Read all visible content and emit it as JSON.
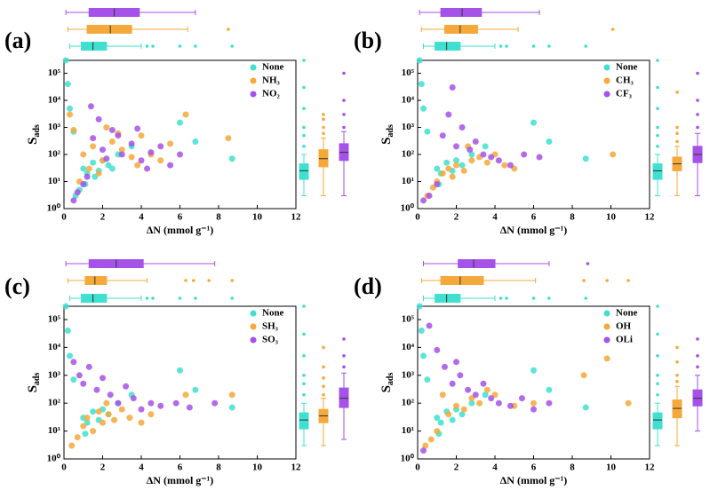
{
  "chart_data": [
    {
      "type": "scatter",
      "panel_label": "(a)",
      "xlabel": "ΔN (mmol g⁻¹)",
      "ylabel": {
        "main": "S",
        "sub": "ads"
      },
      "xlim": [
        0,
        12
      ],
      "xticks": [
        0,
        2,
        4,
        6,
        8,
        10,
        12
      ],
      "log_y": true,
      "ylim": [
        1,
        300000
      ],
      "yticks": [
        {
          "value": 1,
          "label": "10⁰"
        },
        {
          "value": 10,
          "label": "10¹"
        },
        {
          "value": 100,
          "label": "10²"
        },
        {
          "value": 1000,
          "label": "10³"
        },
        {
          "value": 10000,
          "label": "10⁴"
        },
        {
          "value": 100000,
          "label": "10⁵"
        }
      ],
      "legend": "upper right",
      "series": [
        {
          "name": "None",
          "color": "#3fe0d0",
          "x": [
            0.1,
            0.2,
            0.3,
            0.5,
            1,
            1.2,
            1.5,
            1.8,
            2,
            2.3,
            1.1,
            0.8,
            2.8,
            3.5,
            6,
            6.8,
            8.7,
            1.6,
            2.5,
            0.6
          ],
          "values": [
            300000,
            40000,
            5000,
            700,
            30,
            20,
            50,
            25,
            60,
            40,
            8,
            5,
            100,
            200,
            1500,
            300,
            70,
            15,
            30,
            3
          ],
          "x_box": {
            "whislo": 0.3,
            "q1": 0.9,
            "med": 1.5,
            "q3": 2.2,
            "whishi": 4.0,
            "fliers": [
              4.3,
              4.6,
              6,
              6.8,
              8.7
            ]
          },
          "y_box": {
            "whislo": 3,
            "q1": 12,
            "med": 25,
            "q3": 45,
            "whishi": 100,
            "fliers": [
              200,
              500,
              1000,
              5000,
              30000,
              300000
            ]
          }
        },
        {
          "name": "NH₃",
          "color": "#f5a93a",
          "x": [
            0.3,
            0.5,
            1,
            1.5,
            2,
            2.5,
            3,
            3.5,
            4,
            4.5,
            5,
            5.5,
            6.3,
            8.5,
            2.2,
            1.3,
            0.8,
            3.8,
            2.8,
            1.8
          ],
          "values": [
            3000,
            800,
            100,
            200,
            60,
            300,
            150,
            80,
            500,
            100,
            60,
            250,
            3000,
            400,
            1000,
            30,
            10,
            40,
            600,
            20
          ],
          "x_box": {
            "whislo": 0.2,
            "q1": 1.2,
            "med": 2.4,
            "q3": 3.5,
            "whishi": 6.4,
            "fliers": [
              8.5
            ]
          },
          "y_box": {
            "whislo": 3,
            "q1": 35,
            "med": 70,
            "q3": 150,
            "whishi": 400,
            "fliers": [
              600,
              1000,
              2000,
              3000
            ]
          }
        },
        {
          "name": "NO₂",
          "color": "#a552e8",
          "x": [
            0.5,
            0.7,
            1,
            1.2,
            1.5,
            1.8,
            2,
            2.5,
            3,
            3.5,
            4,
            4.5,
            5,
            5.5,
            6,
            1.4,
            2.8,
            3.8,
            4.3,
            2.2
          ],
          "values": [
            2,
            4,
            8,
            15,
            400,
            2000,
            150,
            800,
            100,
            250,
            60,
            120,
            200,
            40,
            100,
            6000,
            500,
            900,
            30,
            70
          ],
          "x_box": {
            "whislo": 0.1,
            "q1": 1.3,
            "med": 2.6,
            "q3": 3.9,
            "whishi": 6.8,
            "fliers": []
          },
          "y_box": {
            "whislo": 3,
            "q1": 60,
            "med": 120,
            "q3": 250,
            "whishi": 700,
            "fliers": [
              1000,
              3000,
              10000,
              100000
            ]
          }
        }
      ]
    },
    {
      "type": "scatter",
      "panel_label": "(b)",
      "xlabel": "ΔN (mmol g⁻¹)",
      "ylabel": {
        "main": "S",
        "sub": "ads"
      },
      "xlim": [
        0,
        12
      ],
      "xticks": [
        0,
        2,
        4,
        6,
        8,
        10,
        12
      ],
      "log_y": true,
      "ylim": [
        1,
        300000
      ],
      "yticks": [
        {
          "value": 1,
          "label": "10⁰"
        },
        {
          "value": 10,
          "label": "10¹"
        },
        {
          "value": 100,
          "label": "10²"
        },
        {
          "value": 1000,
          "label": "10³"
        },
        {
          "value": 10000,
          "label": "10⁴"
        },
        {
          "value": 100000,
          "label": "10⁵"
        }
      ],
      "legend": "upper right",
      "series": [
        {
          "name": "None",
          "color": "#3fe0d0",
          "x": [
            0.1,
            0.2,
            0.3,
            0.5,
            1,
            1.2,
            1.5,
            1.8,
            2,
            2.3,
            1.1,
            2.8,
            3.5,
            6,
            6.8,
            8.7
          ],
          "values": [
            300000,
            40000,
            5000,
            700,
            30,
            20,
            50,
            25,
            60,
            40,
            8,
            100,
            200,
            1500,
            300,
            70
          ],
          "x_box": {
            "whislo": 0.3,
            "q1": 0.9,
            "med": 1.5,
            "q3": 2.2,
            "whishi": 4.0,
            "fliers": [
              4.3,
              4.6,
              6,
              6.8,
              8.7
            ]
          },
          "y_box": {
            "whislo": 3,
            "q1": 12,
            "med": 25,
            "q3": 45,
            "whishi": 100,
            "fliers": [
              200,
              500,
              1000,
              5000,
              30000,
              300000
            ]
          }
        },
        {
          "name": "CH₃",
          "color": "#f5a93a",
          "x": [
            0.5,
            0.8,
            1,
            1.3,
            1.6,
            2,
            2.4,
            2.8,
            3.2,
            3.6,
            4,
            4.5,
            5,
            10.1,
            1.8,
            2.6
          ],
          "values": [
            3,
            6,
            10,
            20,
            30,
            40,
            25,
            60,
            80,
            50,
            100,
            40,
            30,
            100,
            15,
            200
          ],
          "x_box": {
            "whislo": 0.2,
            "q1": 1.4,
            "med": 2.2,
            "q3": 3.1,
            "whishi": 5.2,
            "fliers": [
              10.1
            ]
          },
          "y_box": {
            "whislo": 3,
            "q1": 25,
            "med": 45,
            "q3": 80,
            "whishi": 200,
            "fliers": [
              300,
              600,
              1000,
              20000
            ]
          }
        },
        {
          "name": "CF₃",
          "color": "#a552e8",
          "x": [
            0.3,
            0.6,
            1,
            1.3,
            1.6,
            2,
            2.3,
            2.7,
            3,
            3.4,
            3.8,
            4.2,
            4.8,
            5.5,
            6.3,
            1.8
          ],
          "values": [
            2,
            3,
            8,
            500,
            3000,
            200,
            1000,
            150,
            300,
            100,
            80,
            60,
            40,
            100,
            80,
            30000
          ],
          "x_box": {
            "whislo": 0.1,
            "q1": 1.2,
            "med": 2.3,
            "q3": 3.3,
            "whishi": 6.3,
            "fliers": []
          },
          "y_box": {
            "whislo": 3,
            "q1": 50,
            "med": 100,
            "q3": 200,
            "whishi": 600,
            "fliers": [
              1000,
              3000,
              10000,
              100000
            ]
          }
        }
      ]
    },
    {
      "type": "scatter",
      "panel_label": "(c)",
      "xlabel": "ΔN (mmol g⁻¹)",
      "ylabel": {
        "main": "S",
        "sub": "ads"
      },
      "xlim": [
        0,
        12
      ],
      "xticks": [
        0,
        2,
        4,
        6,
        8,
        10,
        12
      ],
      "log_y": true,
      "ylim": [
        1,
        300000
      ],
      "yticks": [
        {
          "value": 1,
          "label": "10⁰"
        },
        {
          "value": 10,
          "label": "10¹"
        },
        {
          "value": 100,
          "label": "10²"
        },
        {
          "value": 1000,
          "label": "10³"
        },
        {
          "value": 10000,
          "label": "10⁴"
        },
        {
          "value": 100000,
          "label": "10⁵"
        }
      ],
      "legend": "upper right",
      "series": [
        {
          "name": "None",
          "color": "#3fe0d0",
          "x": [
            0.1,
            0.2,
            0.3,
            0.5,
            1,
            1.2,
            1.5,
            1.8,
            2,
            2.3,
            1.1,
            2.8,
            3.5,
            6,
            6.8,
            8.7
          ],
          "values": [
            300000,
            40000,
            5000,
            700,
            30,
            20,
            50,
            25,
            60,
            40,
            8,
            100,
            200,
            1500,
            300,
            70
          ],
          "x_box": {
            "whislo": 0.3,
            "q1": 0.9,
            "med": 1.5,
            "q3": 2.2,
            "whishi": 4.0,
            "fliers": [
              4.3,
              4.6,
              6,
              6.8,
              8.7
            ]
          },
          "y_box": {
            "whislo": 3,
            "q1": 12,
            "med": 25,
            "q3": 45,
            "whishi": 100,
            "fliers": [
              200,
              500,
              1000,
              5000,
              30000,
              300000
            ]
          }
        },
        {
          "name": "SH₃",
          "color": "#f5a93a",
          "x": [
            0.4,
            0.7,
            1,
            1.2,
            1.5,
            1.8,
            2,
            2.3,
            2.6,
            3,
            3.4,
            4,
            4.5,
            6.3,
            8.7,
            2.2
          ],
          "values": [
            3,
            6,
            15,
            30,
            10,
            50,
            20,
            40,
            25,
            60,
            30,
            20,
            40,
            200,
            200,
            100
          ],
          "x_box": {
            "whislo": 0.2,
            "q1": 1.1,
            "med": 1.6,
            "q3": 2.2,
            "whishi": 4.3,
            "fliers": [
              6.3,
              6.7,
              7.5,
              8.7
            ]
          },
          "y_box": {
            "whislo": 3,
            "q1": 20,
            "med": 35,
            "q3": 60,
            "whishi": 150,
            "fliers": [
              200,
              400,
              800,
              2000,
              10000
            ]
          }
        },
        {
          "name": "SO₃",
          "color": "#a552e8",
          "x": [
            0.5,
            0.8,
            1,
            1.3,
            1.7,
            2,
            2.4,
            2.8,
            3.2,
            3.6,
            4,
            4.5,
            5,
            5.8,
            6.5,
            7.8
          ],
          "values": [
            3000,
            1000,
            500,
            2000,
            300,
            800,
            200,
            100,
            400,
            150,
            60,
            100,
            80,
            100,
            70,
            100
          ],
          "x_box": {
            "whislo": 0.1,
            "q1": 1.3,
            "med": 2.7,
            "q3": 4.1,
            "whishi": 7.8,
            "fliers": []
          },
          "y_box": {
            "whislo": 5,
            "q1": 70,
            "med": 150,
            "q3": 350,
            "whishi": 1200,
            "fliers": [
              2000,
              5000,
              20000
            ]
          }
        }
      ]
    },
    {
      "type": "scatter",
      "panel_label": "(d)",
      "xlabel": "ΔN (mmol g⁻¹)",
      "ylabel": {
        "main": "S",
        "sub": "ads"
      },
      "xlim": [
        0,
        12
      ],
      "xticks": [
        0,
        2,
        4,
        6,
        8,
        10,
        12
      ],
      "log_y": true,
      "ylim": [
        1,
        300000
      ],
      "yticks": [
        {
          "value": 1,
          "label": "10⁰"
        },
        {
          "value": 10,
          "label": "10¹"
        },
        {
          "value": 100,
          "label": "10²"
        },
        {
          "value": 1000,
          "label": "10³"
        },
        {
          "value": 10000,
          "label": "10⁴"
        },
        {
          "value": 100000,
          "label": "10⁵"
        }
      ],
      "legend": "upper right",
      "series": [
        {
          "name": "None",
          "color": "#3fe0d0",
          "x": [
            0.1,
            0.2,
            0.3,
            0.5,
            1,
            1.2,
            1.5,
            1.8,
            2,
            2.3,
            1.1,
            2.8,
            3.5,
            6,
            6.8,
            8.7
          ],
          "values": [
            300000,
            40000,
            5000,
            700,
            30,
            20,
            50,
            25,
            60,
            40,
            8,
            100,
            200,
            1500,
            300,
            70
          ],
          "x_box": {
            "whislo": 0.3,
            "q1": 0.9,
            "med": 1.5,
            "q3": 2.2,
            "whishi": 4.0,
            "fliers": [
              4.3,
              4.6,
              6,
              6.8,
              8.7
            ]
          },
          "y_box": {
            "whislo": 3,
            "q1": 12,
            "med": 25,
            "q3": 45,
            "whishi": 100,
            "fliers": [
              200,
              500,
              1000,
              5000,
              30000,
              300000
            ]
          }
        },
        {
          "name": "OH",
          "color": "#f5a93a",
          "x": [
            0.4,
            0.7,
            1,
            1.3,
            1.6,
            2,
            2.4,
            2.8,
            3.2,
            3.6,
            4,
            5,
            6,
            9.8,
            10.9,
            8.6
          ],
          "values": [
            3,
            5,
            10,
            200,
            40,
            80,
            60,
            150,
            100,
            300,
            200,
            80,
            100,
            4000,
            100,
            1000
          ],
          "x_box": {
            "whislo": 0.2,
            "q1": 1.2,
            "med": 2.2,
            "q3": 3.4,
            "whishi": 6.1,
            "fliers": [
              8.6,
              9.8,
              10.9
            ]
          },
          "y_box": {
            "whislo": 3,
            "q1": 30,
            "med": 65,
            "q3": 130,
            "whishi": 400,
            "fliers": [
              600,
              1000,
              3000,
              10000
            ]
          }
        },
        {
          "name": "OLi",
          "color": "#a552e8",
          "x": [
            0.3,
            0.6,
            1,
            1.4,
            1.8,
            2.2,
            2.6,
            3,
            3.4,
            3.8,
            4.2,
            4.8,
            5.4,
            6,
            6.8,
            2
          ],
          "values": [
            2,
            60000,
            8000,
            2000,
            500,
            1000,
            300,
            200,
            500,
            150,
            100,
            80,
            150,
            60,
            100,
            3000
          ],
          "x_box": {
            "whislo": 0.3,
            "q1": 2.1,
            "med": 2.9,
            "q3": 4.0,
            "whishi": 6.8,
            "fliers": [
              8.8
            ]
          },
          "y_box": {
            "whislo": 10,
            "q1": 80,
            "med": 150,
            "q3": 300,
            "whishi": 1000,
            "fliers": [
              2000,
              5000,
              20000
            ]
          }
        }
      ]
    }
  ]
}
